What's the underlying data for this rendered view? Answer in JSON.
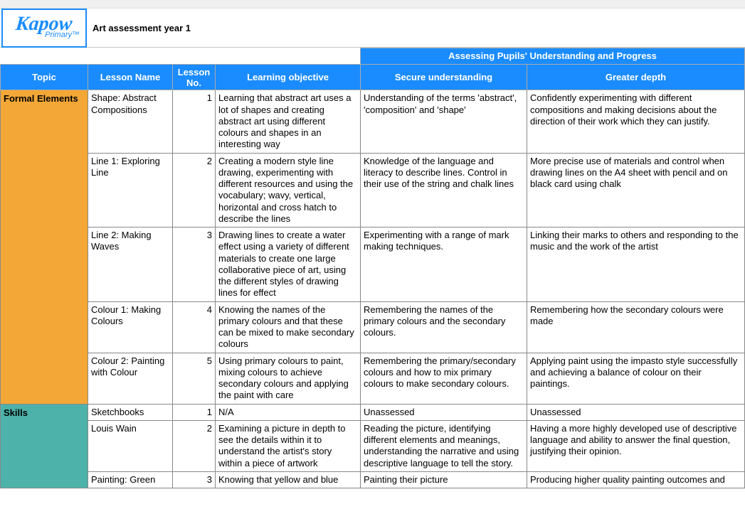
{
  "logo": {
    "main": "Kapow",
    "sub": "Primary™"
  },
  "pageTitle": "Art assessment year 1",
  "assessHeader": "Assessing Pupils' Understanding and Progress",
  "columns": {
    "topic": "Topic",
    "lesson": "Lesson Name",
    "no": "Lesson No.",
    "objective": "Learning objective",
    "secure": "Secure understanding",
    "depth": "Greater depth"
  },
  "colors": {
    "headerBg": "#1a8cff",
    "headerText": "#ffffff",
    "formalBg": "#f3a736",
    "skillsBg": "#4db2aa",
    "border": "#888888"
  },
  "topics": {
    "formal": "Formal Elements",
    "skills": "Skills"
  },
  "rows": {
    "r1": {
      "lesson": "Shape: Abstract Compositions",
      "no": "1",
      "obj": "Learning that abstract art uses a lot of shapes and creating abstract art using different colours and shapes in an interesting way",
      "secure": "Understanding of the terms 'abstract', 'composition' and 'shape'",
      "depth": "Confidently experimenting with different compositions and making decisions about the direction of their work which they can justify."
    },
    "r2": {
      "lesson": "Line 1: Exploring Line",
      "no": "2",
      "obj": "Creating a modern style line drawing, experimenting with different resources and using the vocabulary; wavy, vertical, horizontal and cross hatch to describe the lines",
      "secure": "Knowledge of the language and literacy to describe lines. Control in their use of the string and chalk lines",
      "depth": "More precise use of materials and control when drawing lines on the A4 sheet with pencil and on black card using chalk"
    },
    "r3": {
      "lesson": "Line 2: Making Waves",
      "no": "3",
      "obj": "Drawing lines to create a water effect using a variety of different materials to create one large collaborative piece of art, using the different styles of drawing lines for effect",
      "secure": "Experimenting with a range of mark making techniques.",
      "depth": "Linking their marks to others and responding to the music and the work of the artist"
    },
    "r4": {
      "lesson": "Colour 1: Making Colours",
      "no": "4",
      "obj": "Knowing the names of the primary colours and that these can be mixed to make secondary colours",
      "secure": "Remembering the names of the primary colours and the secondary colours.",
      "depth": "Remembering how the secondary colours were made"
    },
    "r5": {
      "lesson": "Colour 2: Painting with Colour",
      "no": "5",
      "obj": "Using primary colours to paint, mixing colours to achieve secondary colours and applying the paint with care",
      "secure": "Remembering the primary/secondary colours and how to mix primary colours to make secondary colours.",
      "depth": "Applying paint using the impasto style successfully and achieving a balance of colour on their paintings."
    },
    "r6": {
      "lesson": "Sketchbooks",
      "no": "1",
      "obj": "N/A",
      "secure": "Unassessed",
      "depth": "Unassessed"
    },
    "r7": {
      "lesson": "Louis Wain",
      "no": "2",
      "obj": "Examining a picture in depth to see the details within it to understand the artist's story within a piece of artwork",
      "secure": "Reading the picture, identifying different elements and meanings, understanding the narrative and using descriptive language to tell the story.",
      "depth": "Having a more highly developed use of descriptive language and ability to answer the final question, justifying their opinion."
    },
    "r8": {
      "lesson": "Painting: Green",
      "no": "3",
      "obj": "Knowing that yellow and blue",
      "secure": "Painting their picture",
      "depth": "Producing higher quality painting outcomes and"
    }
  }
}
